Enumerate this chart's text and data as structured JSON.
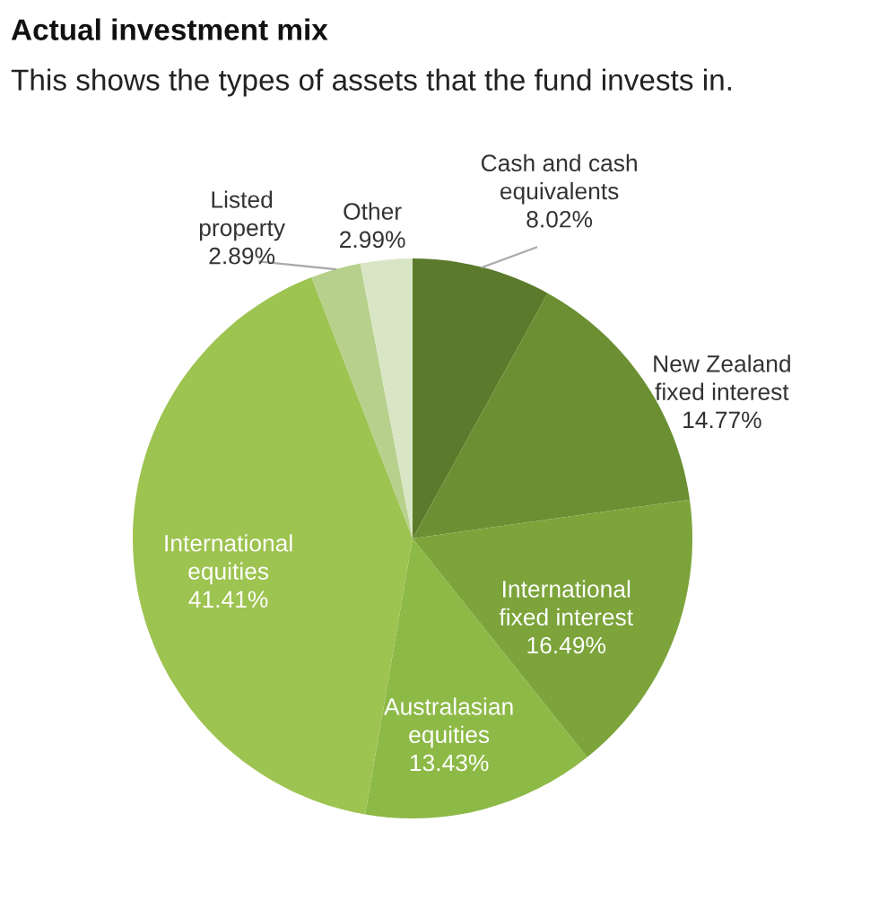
{
  "chart_data": {
    "type": "pie",
    "title": "Actual investment mix",
    "subtitle": "This shows the types of assets that the fund invests in.",
    "categories": [
      "Cash and cash\nequivalents",
      "New Zealand\nfixed interest",
      "International\nfixed interest",
      "Australasian\nequities",
      "International\nequities",
      "Listed\nproperty",
      "Other"
    ],
    "values": [
      8.02,
      14.77,
      16.49,
      13.43,
      41.41,
      2.89,
      2.99
    ],
    "value_labels": [
      "8.02%",
      "14.77%",
      "16.49%",
      "13.43%",
      "41.41%",
      "2.89%",
      "2.99%"
    ],
    "colors": [
      "#5b7a2b",
      "#6b8f32",
      "#7ca43b",
      "#8db946",
      "#9dc350",
      "#b7d08c",
      "#d9e6c6"
    ]
  }
}
